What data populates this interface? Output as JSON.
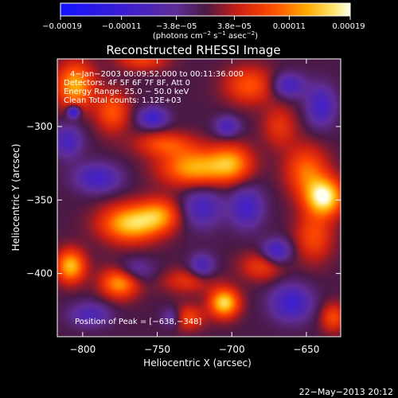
{
  "chart_data": {
    "type": "heatmap",
    "title": "Reconstructed RHESSI Image",
    "xlabel": "Heliocentric X (arcsec)",
    "ylabel": "Heliocentric Y (arcsec)",
    "xlim": [
      -817,
      -627
    ],
    "ylim": [
      -443,
      -254
    ],
    "x_ticks": [
      -800,
      -750,
      -700,
      -650
    ],
    "y_ticks": [
      -300,
      -350,
      -400
    ],
    "x_tick_labels": [
      "−800",
      "−750",
      "−700",
      "−650"
    ],
    "y_tick_labels": [
      "−300",
      "−350",
      "−400"
    ],
    "colorbar": {
      "range": [
        -0.00019,
        0.00019
      ],
      "ticks": [
        -0.00019,
        -0.00011,
        -3.8e-05,
        3.8e-05,
        0.00011,
        0.00019
      ],
      "tick_labels": [
        "−0.00019",
        "−0.00011",
        "−3.8e−05",
        "3.8e−05",
        "0.00011",
        "0.00019"
      ],
      "unit_prefix": "(photons cm",
      "unit_exp1": "−2",
      "unit_mid": " s",
      "unit_exp2": "−1",
      "unit_mid2": " asec",
      "unit_exp3": "−2",
      "unit_suffix": ")"
    },
    "annotation_lines": [
      "4−Jan−2003 00:09:52.000 to 00:11:36.000",
      "Detectors: 4F 5F 6F 7F 8F, Att 0",
      "Energy Range: 25.0 − 50.0 keV",
      "Clean     Total counts: 1.12E+03"
    ],
    "peak_label": "Position of Peak = [−638,−348]",
    "peak": {
      "x": -638,
      "y": -348,
      "value": 0.00019
    },
    "sources": [
      {
        "x": -638,
        "y": -348,
        "sx": 9,
        "sy": 9,
        "a": 1.0
      },
      {
        "x": -650,
        "y": -330,
        "sx": 10,
        "sy": 12,
        "a": 0.55
      },
      {
        "x": -645,
        "y": -375,
        "sx": 9,
        "sy": 12,
        "a": 0.45
      },
      {
        "x": -768,
        "y": -366,
        "sx": 14,
        "sy": 9,
        "a": 0.85
      },
      {
        "x": -748,
        "y": -360,
        "sx": 10,
        "sy": 8,
        "a": 0.55
      },
      {
        "x": -725,
        "y": -328,
        "sx": 16,
        "sy": 9,
        "a": 0.75
      },
      {
        "x": -700,
        "y": -325,
        "sx": 10,
        "sy": 9,
        "a": 0.6
      },
      {
        "x": -745,
        "y": -312,
        "sx": 14,
        "sy": 6,
        "a": 0.45
      },
      {
        "x": -805,
        "y": -272,
        "sx": 9,
        "sy": 11,
        "a": 0.75
      },
      {
        "x": -808,
        "y": -395,
        "sx": 7,
        "sy": 8,
        "a": 0.8
      },
      {
        "x": -775,
        "y": -405,
        "sx": 9,
        "sy": 8,
        "a": 0.8
      },
      {
        "x": -705,
        "y": -420,
        "sx": 7,
        "sy": 7,
        "a": 0.9
      },
      {
        "x": -688,
        "y": -272,
        "sx": 12,
        "sy": 9,
        "a": 0.5
      },
      {
        "x": -780,
        "y": -290,
        "sx": 8,
        "sy": 10,
        "a": 0.5
      },
      {
        "x": -680,
        "y": -395,
        "sx": 10,
        "sy": 7,
        "a": 0.4
      },
      {
        "x": -730,
        "y": -430,
        "sx": 8,
        "sy": 6,
        "a": 0.45
      },
      {
        "x": -668,
        "y": -300,
        "sx": 8,
        "sy": 10,
        "a": 0.35
      },
      {
        "x": -730,
        "y": -405,
        "sx": 12,
        "sy": 6,
        "a": 0.35
      },
      {
        "x": -632,
        "y": -430,
        "sx": 6,
        "sy": 7,
        "a": 0.45
      },
      {
        "x": -760,
        "y": -255,
        "sx": 12,
        "sy": 5,
        "a": 0.4
      },
      {
        "x": -703,
        "y": -300,
        "sx": 6,
        "sy": 5,
        "a": -0.45
      },
      {
        "x": -753,
        "y": -294,
        "sx": 7,
        "sy": 5,
        "a": -0.55
      },
      {
        "x": -790,
        "y": -335,
        "sx": 11,
        "sy": 7,
        "a": -0.5
      },
      {
        "x": -720,
        "y": -355,
        "sx": 10,
        "sy": 10,
        "a": -0.45
      },
      {
        "x": -690,
        "y": -355,
        "sx": 8,
        "sy": 10,
        "a": -0.5
      },
      {
        "x": -670,
        "y": -385,
        "sx": 7,
        "sy": 6,
        "a": -0.55
      },
      {
        "x": -768,
        "y": -398,
        "sx": 10,
        "sy": 6,
        "a": -0.45
      },
      {
        "x": -660,
        "y": -420,
        "sx": 10,
        "sy": 9,
        "a": -0.55
      },
      {
        "x": -810,
        "y": -310,
        "sx": 7,
        "sy": 8,
        "a": -0.45
      },
      {
        "x": -720,
        "y": -395,
        "sx": 6,
        "sy": 6,
        "a": -0.45
      },
      {
        "x": -662,
        "y": -272,
        "sx": 8,
        "sy": 6,
        "a": -0.5
      },
      {
        "x": -640,
        "y": -286,
        "sx": 7,
        "sy": 10,
        "a": -0.5
      },
      {
        "x": -740,
        "y": -430,
        "sx": 5,
        "sy": 5,
        "a": -0.4
      },
      {
        "x": -795,
        "y": -428,
        "sx": 10,
        "sy": 6,
        "a": -0.4
      },
      {
        "x": -806,
        "y": -290,
        "sx": 3,
        "sy": 3,
        "a": -0.8
      }
    ]
  },
  "footer_date": "22−May−2013 20:12"
}
